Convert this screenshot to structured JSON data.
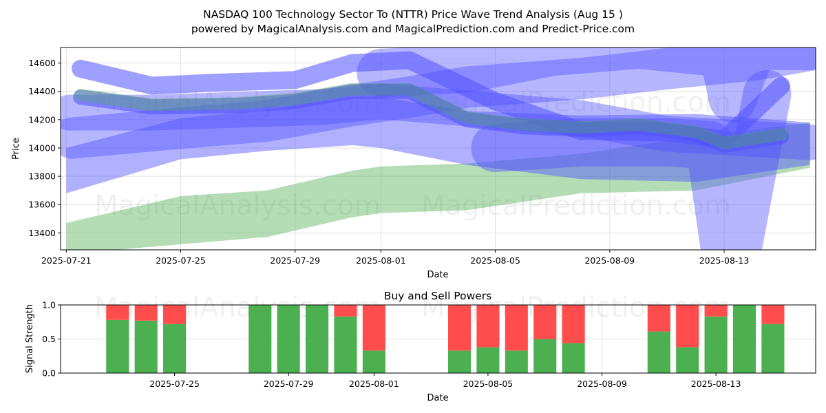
{
  "title": "NASDAQ 100 Technology Sector To (NTTR) Price Wave Trend Analysis (Aug 15 )",
  "subtitle": "powered by MagicalAnalysis.com and MagicalPrediction.com and Predict-Price.com",
  "watermarks": [
    "MagicalAnalysis.com",
    "MagicalPrediction.com"
  ],
  "colors": {
    "buy": "#4caf50",
    "sell": "#ff4d4d",
    "blue_band": "#5050ff",
    "green_band": "#4caf50"
  },
  "chart_data": [
    {
      "type": "area",
      "name": "price-wave-chart",
      "xlabel": "Date",
      "ylabel": "Price",
      "ylim": [
        13280,
        14710
      ],
      "xlim_days": [
        -0.2,
        26.2
      ],
      "x_origin": "2025-07-21",
      "yticks": [
        13400,
        13600,
        13800,
        14000,
        14200,
        14400,
        14600
      ],
      "xtick_labels": [
        "2025-07-21",
        "2025-07-25",
        "2025-07-29",
        "2025-08-01",
        "2025-08-05",
        "2025-08-09",
        "2025-08-13"
      ],
      "xtick_days": [
        0,
        4,
        8,
        11,
        15,
        19,
        23
      ],
      "grid": true,
      "bands": [
        {
          "color": "green",
          "x": [
            0,
            4,
            7,
            10,
            11,
            14,
            18,
            22,
            26
          ],
          "upper": [
            13470,
            13660,
            13700,
            13840,
            13870,
            13890,
            13960,
            14080,
            14180
          ],
          "lower": [
            13250,
            13320,
            13370,
            13510,
            13540,
            13560,
            13680,
            13700,
            13860
          ]
        },
        {
          "color": "blue",
          "x": [
            0,
            4,
            7,
            10,
            11,
            14,
            18,
            22,
            26
          ],
          "upper": [
            14000,
            14210,
            14270,
            14360,
            14360,
            14260,
            14230,
            14240,
            14180
          ],
          "lower": [
            13680,
            13920,
            13980,
            14020,
            14000,
            13880,
            13780,
            13760,
            13880
          ]
        },
        {
          "color": "blue",
          "x": [
            0.1,
            3,
            6,
            9,
            11,
            14,
            18,
            21,
            26
          ],
          "upper": [
            14250,
            14250,
            14270,
            14290,
            14330,
            14280,
            14210,
            14100,
            14040
          ]
        },
        {
          "color": "blue",
          "x": [
            0.2,
            4,
            7,
            10,
            12,
            14,
            18,
            21,
            24,
            26
          ],
          "upper": [
            14070,
            14140,
            14190,
            14300,
            14360,
            14430,
            14490,
            14560,
            14620,
            14690
          ]
        },
        {
          "color": "blue",
          "x": [
            11,
            14,
            17,
            20,
            22.5,
            23,
            23.3,
            24,
            25,
            26
          ],
          "upper": [
            14530,
            14560,
            14680,
            14730,
            14680,
            14650,
            14350,
            14720,
            14720,
            14720
          ]
        },
        {
          "color": "blue",
          "x": [
            15,
            18,
            21,
            22.5,
            23,
            23.5,
            24.5
          ],
          "upper": [
            14000,
            14040,
            14040,
            14020,
            13320,
            13320,
            14380
          ]
        },
        {
          "color": "blue",
          "x": [
            0.5,
            3,
            5,
            8,
            10,
            12,
            15,
            18,
            21,
            23,
            25
          ],
          "upper": [
            14560,
            14440,
            14460,
            14480,
            14600,
            14620,
            14330,
            14120,
            14110,
            14060,
            14440
          ]
        },
        {
          "color": "blue",
          "x": [
            0.5,
            3,
            6,
            8,
            10,
            12,
            14,
            16,
            18,
            20,
            22,
            23,
            25
          ],
          "upper": [
            14360,
            14290,
            14300,
            14330,
            14400,
            14400,
            14200,
            14150,
            14130,
            14150,
            14100,
            14020,
            14080
          ]
        }
      ]
    },
    {
      "type": "bar",
      "name": "buy-sell-powers-chart",
      "title": "Buy and Sell Powers",
      "xlabel": "Date",
      "ylabel": "Signal Strength",
      "ylim": [
        0,
        1
      ],
      "xlim_days": [
        0,
        26.5
      ],
      "x_origin": "2025-07-21",
      "yticks": [
        0.0,
        0.5,
        1.0
      ],
      "ytick_labels": [
        "0.0",
        "0.5",
        "1.0"
      ],
      "xtick_labels": [
        "2025-07-25",
        "2025-07-29",
        "2025-08-01",
        "2025-08-05",
        "2025-08-09",
        "2025-08-13"
      ],
      "xtick_days": [
        4,
        8,
        11,
        15,
        19,
        23
      ],
      "grid": true,
      "bar_days": [
        2,
        3,
        4,
        7,
        8,
        9,
        10,
        11,
        14,
        15,
        16,
        17,
        18,
        21,
        22,
        23,
        24,
        25
      ],
      "series": [
        {
          "name": "Buy",
          "color": "green",
          "values": [
            0.78,
            0.77,
            0.72,
            1.0,
            1.0,
            1.0,
            0.83,
            0.33,
            0.33,
            0.38,
            0.33,
            0.5,
            0.44,
            0.61,
            0.38,
            0.83,
            1.0,
            0.72
          ]
        },
        {
          "name": "Sell",
          "color": "red",
          "values": [
            0.22,
            0.23,
            0.28,
            0.0,
            0.0,
            0.0,
            0.17,
            0.67,
            0.67,
            0.62,
            0.67,
            0.5,
            0.56,
            0.39,
            0.62,
            0.17,
            0.0,
            0.28
          ]
        }
      ]
    }
  ]
}
